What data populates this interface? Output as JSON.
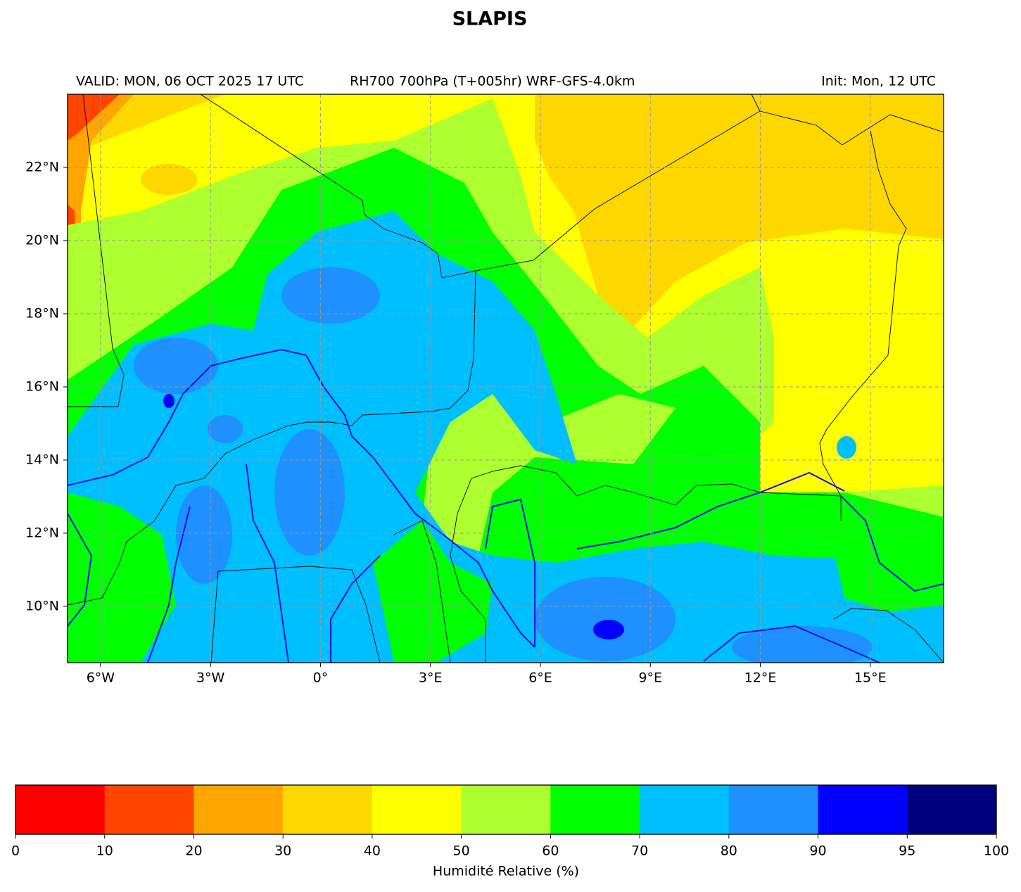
{
  "title": "SLAPIS",
  "subtitle_left": "VALID: MON, 06 OCT 2025 17 UTC",
  "subtitle_center": "RH700 700hPa (T+005hr) WRF-GFS-4.0km",
  "subtitle_right": "Init: Mon, 12 UTC",
  "map": {
    "lonlim": [
      -6.9,
      17.0
    ],
    "latlim": [
      8.46,
      24.0
    ],
    "lon_ticks": [
      {
        "value": -6,
        "label": "6°W"
      },
      {
        "value": -3,
        "label": "3°W"
      },
      {
        "value": 0,
        "label": "0°"
      },
      {
        "value": 3,
        "label": "3°E"
      },
      {
        "value": 6,
        "label": "6°E"
      },
      {
        "value": 9,
        "label": "9°E"
      },
      {
        "value": 12,
        "label": "12°E"
      },
      {
        "value": 15,
        "label": "15°E"
      }
    ],
    "lat_ticks": [
      {
        "value": 10,
        "label": "10°N"
      },
      {
        "value": 12,
        "label": "12°N"
      },
      {
        "value": 14,
        "label": "14°N"
      },
      {
        "value": 16,
        "label": "16°N"
      },
      {
        "value": 18,
        "label": "18°N"
      },
      {
        "value": 20,
        "label": "20°N"
      },
      {
        "value": 22,
        "label": "22°N"
      }
    ],
    "grid": true
  },
  "colorbar": {
    "label": "Humidité Relative (%)",
    "bounds": [
      0,
      10,
      20,
      30,
      40,
      50,
      60,
      70,
      80,
      90,
      95,
      100
    ],
    "colors": [
      "#ff0000",
      "#ff4500",
      "#ffa500",
      "#ffd700",
      "#ffff00",
      "#adff2f",
      "#00ff00",
      "#00bfff",
      "#1e90ff",
      "#0000ff",
      "#00007f"
    ]
  }
}
